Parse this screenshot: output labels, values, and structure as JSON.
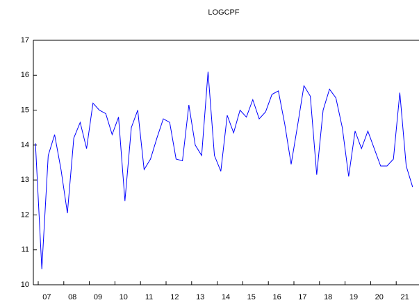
{
  "chart_data": {
    "type": "line",
    "title": "LOGCPF",
    "categories": [
      null,
      null,
      "07",
      null,
      null,
      null,
      "08",
      null,
      null,
      null,
      "09",
      null,
      null,
      null,
      "10",
      null,
      null,
      null,
      "11",
      null,
      null,
      null,
      "12",
      null,
      null,
      null,
      "13",
      null,
      null,
      null,
      "14",
      null,
      null,
      null,
      "15",
      null,
      null,
      null,
      "16",
      null,
      null,
      null,
      "17",
      null,
      null,
      null,
      "18",
      null,
      null,
      null,
      "19",
      null,
      null,
      null,
      "20",
      null,
      null,
      null,
      "21",
      null
    ],
    "series": [
      {
        "name": "LOGCPF",
        "color": "#0000ff",
        "values": [
          14.05,
          10.45,
          13.7,
          14.3,
          13.3,
          12.05,
          14.2,
          14.65,
          13.9,
          15.2,
          15.0,
          14.9,
          14.3,
          14.8,
          12.4,
          14.5,
          15.0,
          13.3,
          13.6,
          14.2,
          14.75,
          14.65,
          13.6,
          13.55,
          15.15,
          14.0,
          13.7,
          16.1,
          13.7,
          13.25,
          14.85,
          14.35,
          15.0,
          14.8,
          15.3,
          14.75,
          14.95,
          15.45,
          15.55,
          14.6,
          13.45,
          14.55,
          15.7,
          15.4,
          13.15,
          15.0,
          15.6,
          15.35,
          14.5,
          13.1,
          14.4,
          13.9,
          14.4,
          13.9,
          13.4,
          13.4,
          13.6,
          15.5,
          13.4,
          12.8
        ]
      }
    ],
    "ylim": [
      10,
      17
    ],
    "yticks": [
      10,
      11,
      12,
      13,
      14,
      15,
      16,
      17
    ]
  }
}
